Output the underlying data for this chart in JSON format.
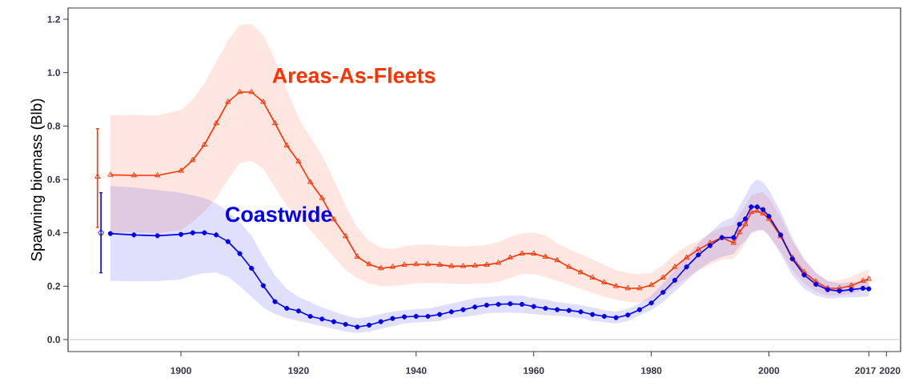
{
  "chart_data": {
    "type": "line",
    "ylabel": "Spawning biomass (Blb)",
    "xlim": [
      1880.8,
      2022.4
    ],
    "ylim": [
      -0.045,
      1.242
    ],
    "xticks": [
      1900,
      1920,
      1940,
      1960,
      1980,
      2000,
      2017,
      2020
    ],
    "yticks": [
      {
        "value": 0,
        "label": "0.0"
      },
      {
        "value": 0.2,
        "label": "0.2"
      },
      {
        "value": 0.4,
        "label": "0.4"
      },
      {
        "value": 0.6,
        "label": "0.6"
      },
      {
        "value": 0.8,
        "label": "0.8"
      },
      {
        "value": 1,
        "label": "1.0"
      },
      {
        "value": 1.2,
        "label": "1.2"
      }
    ],
    "grid": false,
    "legend": false,
    "ref_lines": [
      {
        "axis": "y",
        "value": 0,
        "color": "#c8c8c8"
      }
    ],
    "x": [
      1888,
      1892,
      1896,
      1900,
      1902,
      1904,
      1906,
      1908,
      1910,
      1912,
      1914,
      1916,
      1918,
      1920,
      1922,
      1924,
      1926,
      1928,
      1930,
      1932,
      1934,
      1936,
      1938,
      1940,
      1942,
      1944,
      1946,
      1948,
      1950,
      1952,
      1954,
      1956,
      1958,
      1960,
      1962,
      1964,
      1966,
      1968,
      1970,
      1972,
      1974,
      1976,
      1978,
      1980,
      1982,
      1984,
      1986,
      1988,
      1990,
      1992,
      1994,
      1995,
      1996,
      1997,
      1998,
      1999,
      2000,
      2002,
      2004,
      2006,
      2008,
      2010,
      2012,
      2014,
      2016,
      2017
    ],
    "series": [
      {
        "name": "Areas-As-Fleets",
        "color": "#ff3300",
        "marker": "triangle",
        "values": [
          0.617,
          0.615,
          0.615,
          0.632,
          0.672,
          0.73,
          0.81,
          0.89,
          0.927,
          0.927,
          0.89,
          0.81,
          0.727,
          0.667,
          0.59,
          0.53,
          0.45,
          0.387,
          0.31,
          0.282,
          0.267,
          0.272,
          0.28,
          0.282,
          0.282,
          0.28,
          0.275,
          0.275,
          0.277,
          0.28,
          0.287,
          0.307,
          0.322,
          0.322,
          0.31,
          0.297,
          0.272,
          0.252,
          0.232,
          0.214,
          0.2,
          0.192,
          0.192,
          0.204,
          0.232,
          0.272,
          0.307,
          0.337,
          0.362,
          0.382,
          0.362,
          0.402,
          0.432,
          0.477,
          0.482,
          0.472,
          0.452,
          0.387,
          0.307,
          0.252,
          0.217,
          0.192,
          0.192,
          0.202,
          0.22,
          0.227
        ],
        "upper": [
          0.84,
          0.842,
          0.839,
          0.86,
          0.9,
          0.96,
          1.04,
          1.12,
          1.178,
          1.182,
          1.14,
          1.05,
          0.94,
          0.83,
          0.76,
          0.69,
          0.6,
          0.5,
          0.42,
          0.37,
          0.345,
          0.34,
          0.35,
          0.355,
          0.356,
          0.353,
          0.35,
          0.349,
          0.351,
          0.355,
          0.365,
          0.385,
          0.398,
          0.401,
          0.39,
          0.36,
          0.34,
          0.32,
          0.3,
          0.28,
          0.26,
          0.25,
          0.245,
          0.25,
          0.28,
          0.32,
          0.35,
          0.37,
          0.4,
          0.42,
          0.43,
          0.47,
          0.5,
          0.54,
          0.548,
          0.552,
          0.53,
          0.46,
          0.37,
          0.3,
          0.25,
          0.219,
          0.222,
          0.235,
          0.255,
          0.265
        ],
        "lower": [
          0.4,
          0.402,
          0.398,
          0.41,
          0.44,
          0.48,
          0.53,
          0.6,
          0.66,
          0.67,
          0.64,
          0.57,
          0.5,
          0.46,
          0.41,
          0.36,
          0.31,
          0.26,
          0.23,
          0.21,
          0.2,
          0.201,
          0.205,
          0.21,
          0.212,
          0.211,
          0.209,
          0.208,
          0.209,
          0.211,
          0.215,
          0.23,
          0.245,
          0.245,
          0.235,
          0.22,
          0.205,
          0.19,
          0.175,
          0.16,
          0.15,
          0.141,
          0.139,
          0.15,
          0.17,
          0.2,
          0.23,
          0.26,
          0.28,
          0.3,
          0.302,
          0.33,
          0.36,
          0.4,
          0.408,
          0.411,
          0.39,
          0.33,
          0.26,
          0.21,
          0.18,
          0.164,
          0.166,
          0.17,
          0.185,
          0.19
        ]
      },
      {
        "name": "Coastwide",
        "color": "#0000ee",
        "marker": "circle",
        "values": [
          0.397,
          0.392,
          0.389,
          0.394,
          0.4,
          0.4,
          0.392,
          0.367,
          0.322,
          0.267,
          0.202,
          0.142,
          0.117,
          0.107,
          0.087,
          0.077,
          0.067,
          0.057,
          0.047,
          0.054,
          0.067,
          0.079,
          0.085,
          0.087,
          0.087,
          0.094,
          0.104,
          0.112,
          0.122,
          0.129,
          0.132,
          0.134,
          0.132,
          0.124,
          0.117,
          0.112,
          0.109,
          0.104,
          0.094,
          0.087,
          0.082,
          0.092,
          0.112,
          0.137,
          0.177,
          0.222,
          0.272,
          0.317,
          0.352,
          0.382,
          0.382,
          0.432,
          0.452,
          0.497,
          0.497,
          0.487,
          0.462,
          0.392,
          0.302,
          0.242,
          0.207,
          0.187,
          0.182,
          0.187,
          0.192,
          0.19
        ],
        "upper": [
          0.575,
          0.57,
          0.56,
          0.55,
          0.54,
          0.53,
          0.51,
          0.48,
          0.44,
          0.39,
          0.31,
          0.24,
          0.19,
          0.16,
          0.14,
          0.12,
          0.105,
          0.09,
          0.08,
          0.085,
          0.095,
          0.105,
          0.11,
          0.114,
          0.116,
          0.125,
          0.135,
          0.145,
          0.155,
          0.16,
          0.163,
          0.166,
          0.164,
          0.155,
          0.15,
          0.14,
          0.135,
          0.13,
          0.12,
          0.11,
          0.105,
          0.115,
          0.135,
          0.165,
          0.21,
          0.26,
          0.31,
          0.36,
          0.4,
          0.44,
          0.46,
          0.5,
          0.54,
          0.58,
          0.6,
          0.59,
          0.56,
          0.48,
          0.38,
          0.3,
          0.25,
          0.22,
          0.21,
          0.215,
          0.218,
          0.221
        ],
        "lower": [
          0.22,
          0.218,
          0.219,
          0.225,
          0.24,
          0.249,
          0.251,
          0.235,
          0.2,
          0.16,
          0.12,
          0.095,
          0.08,
          0.07,
          0.06,
          0.05,
          0.04,
          0.03,
          0.025,
          0.03,
          0.04,
          0.05,
          0.06,
          0.064,
          0.066,
          0.07,
          0.08,
          0.085,
          0.09,
          0.098,
          0.1,
          0.101,
          0.099,
          0.095,
          0.091,
          0.089,
          0.085,
          0.08,
          0.07,
          0.065,
          0.06,
          0.07,
          0.09,
          0.11,
          0.14,
          0.18,
          0.22,
          0.26,
          0.29,
          0.31,
          0.32,
          0.35,
          0.37,
          0.4,
          0.409,
          0.411,
          0.39,
          0.32,
          0.24,
          0.19,
          0.165,
          0.154,
          0.156,
          0.158,
          0.16,
          0.162
        ]
      },
      {
        "type": "scatter",
        "color": "#ff3300",
        "marker": "triangle",
        "x": [
          1885.8
        ],
        "values": [
          0.61
        ],
        "errors": [
          [
            0.42,
            0.79
          ]
        ]
      },
      {
        "type": "scatter",
        "color": "#0000ee",
        "marker": "circle",
        "x": [
          1886.4
        ],
        "values": [
          0.4
        ],
        "errors": [
          [
            0.25,
            0.55
          ]
        ]
      }
    ]
  }
}
